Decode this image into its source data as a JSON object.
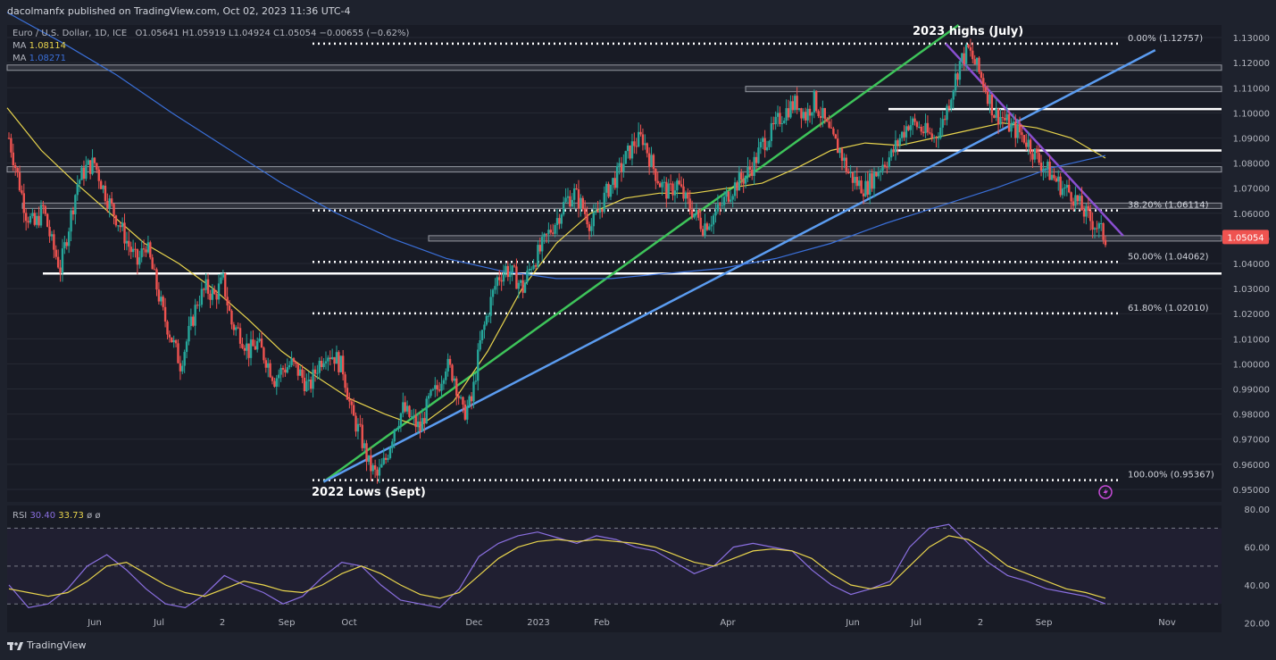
{
  "header": {
    "published": "dacolmanfx published on TradingView.com, Oct 02, 2023 11:36 UTC-4"
  },
  "legend": {
    "symbol": "Euro / U.S. Dollar, 1D, ICE",
    "ohlc": "O1.05641  H1.05919  L1.04924  C1.05054  −0.00655 (−0.62%)",
    "ma1_label": "MA",
    "ma1_value": "1.08114",
    "ma2_label": "MA",
    "ma2_value": "1.08271",
    "rsi_label": "RSI",
    "rsi_value": "30.40",
    "rsi_ma_value": "33.73",
    "rsi_extra": "ø   ø"
  },
  "footer": {
    "brand": "TradingView"
  },
  "chart_data": [
    {
      "type": "candlestick",
      "title": "Euro / U.S. Dollar, 1D, ICE",
      "x_axis_labels": [
        "Jun",
        "Jul",
        "2",
        "Sep",
        "Oct",
        "Dec",
        "2023",
        "Feb",
        "Apr",
        "Jun",
        "Jul",
        "2",
        "Sep",
        "Nov"
      ],
      "y_ticks": [
        "1.13000",
        "1.12000",
        "1.11000",
        "1.10000",
        "1.09000",
        "1.08000",
        "1.07000",
        "1.06000",
        "1.05000",
        "1.04000",
        "1.03000",
        "1.02000",
        "1.01000",
        "1.00000",
        "0.99000",
        "0.98000",
        "0.97000",
        "0.96000",
        "0.95000"
      ],
      "ylim": [
        0.945,
        1.135
      ],
      "last_price": "1.05054",
      "price_path": [
        1.09,
        1.075,
        1.06,
        1.055,
        1.062,
        1.048,
        1.038,
        1.055,
        1.072,
        1.078,
        1.08,
        1.07,
        1.062,
        1.055,
        1.047,
        1.04,
        1.048,
        1.034,
        1.02,
        1.01,
        1.0,
        1.012,
        1.025,
        1.03,
        1.027,
        1.033,
        1.016,
        1.012,
        1.005,
        1.008,
        1.002,
        0.994,
        0.998,
        1.0,
        0.996,
        0.99,
        0.999,
        1.005,
        1.003,
        0.998,
        0.98,
        0.972,
        0.96,
        0.955,
        0.962,
        0.975,
        0.982,
        0.978,
        0.974,
        0.985,
        0.99,
        1.0,
        0.995,
        0.98,
        0.985,
        1.008,
        1.022,
        1.034,
        1.038,
        1.035,
        1.03,
        1.04,
        1.045,
        1.052,
        1.058,
        1.065,
        1.068,
        1.062,
        1.055,
        1.062,
        1.07,
        1.075,
        1.082,
        1.088,
        1.09,
        1.08,
        1.072,
        1.068,
        1.072,
        1.065,
        1.06,
        1.055,
        1.058,
        1.062,
        1.068,
        1.072,
        1.075,
        1.08,
        1.088,
        1.092,
        1.098,
        1.102,
        1.104,
        1.099,
        1.105,
        1.098,
        1.09,
        1.085,
        1.076,
        1.072,
        1.07,
        1.075,
        1.08,
        1.083,
        1.09,
        1.096,
        1.095,
        1.092,
        1.09,
        1.096,
        1.108,
        1.12,
        1.125,
        1.118,
        1.11,
        1.1,
        1.098,
        1.094,
        1.092,
        1.088,
        1.082,
        1.078,
        1.074,
        1.07,
        1.068,
        1.063,
        1.058,
        1.055,
        1.05
      ],
      "moving_averages": [
        {
          "name": "MA",
          "value": "1.08114",
          "color": "#e8d44d",
          "path": [
            1.102,
            1.085,
            1.072,
            1.06,
            1.048,
            1.04,
            1.03,
            1.018,
            1.005,
            0.995,
            0.986,
            0.98,
            0.975,
            0.985,
            1.005,
            1.03,
            1.048,
            1.06,
            1.066,
            1.068,
            1.068,
            1.07,
            1.072,
            1.078,
            1.085,
            1.088,
            1.087,
            1.09,
            1.093,
            1.096,
            1.094,
            1.09,
            1.082
          ]
        },
        {
          "name": "MA",
          "value": "1.08271",
          "color": "#3a6fd8",
          "path": [
            1.14,
            1.128,
            1.115,
            1.1,
            1.086,
            1.072,
            1.06,
            1.05,
            1.042,
            1.037,
            1.034,
            1.034,
            1.036,
            1.038,
            1.042,
            1.048,
            1.056,
            1.063,
            1.07,
            1.078,
            1.083
          ]
        }
      ],
      "horizontal_levels": [
        1.118,
        1.1095,
        1.1015,
        1.085,
        1.0775,
        1.063,
        1.05,
        1.036
      ],
      "trendlines": [
        {
          "from": [
            "2022-09-26",
            0.953
          ],
          "to": [
            "2023-07-20",
            1.135
          ],
          "color": "#3ec45a"
        },
        {
          "from": [
            "2022-09-26",
            0.953
          ],
          "to": [
            "2023-10-20",
            1.125
          ],
          "color": "#5b9cf0"
        },
        {
          "from": [
            "2023-07-14",
            1.1276
          ],
          "to": [
            "2023-10-05",
            1.051
          ],
          "color": "#8a4fd1"
        }
      ],
      "fibonacci": [
        {
          "label": "0.00% (1.12757)",
          "value": 1.12757
        },
        {
          "label": "38.20% (1.06114)",
          "value": 1.06114
        },
        {
          "label": "50.00% (1.04062)",
          "value": 1.04062
        },
        {
          "label": "61.80% (1.02010)",
          "value": 1.0201
        },
        {
          "label": "100.00% (0.95367)",
          "value": 0.95367
        }
      ],
      "annotations": [
        {
          "text": "2023 highs (July)",
          "date": "2023-07-14",
          "price": 1.12757
        },
        {
          "text": "2022 Lows (Sept)",
          "date": "2022-09-26",
          "price": 0.95367
        }
      ]
    },
    {
      "type": "line",
      "title": "RSI",
      "y_ticks": [
        "80.00",
        "60.00",
        "40.00",
        "20.00"
      ],
      "ylim": [
        15,
        82
      ],
      "bands": [
        70,
        50,
        30
      ],
      "series": [
        {
          "name": "RSI",
          "color": "#8a6fe0",
          "values": [
            40,
            28,
            30,
            38,
            50,
            56,
            48,
            38,
            30,
            28,
            35,
            45,
            40,
            36,
            30,
            34,
            44,
            52,
            50,
            40,
            32,
            30,
            28,
            38,
            55,
            62,
            66,
            68,
            65,
            62,
            66,
            64,
            60,
            58,
            52,
            46,
            50,
            60,
            62,
            60,
            58,
            48,
            40,
            35,
            38,
            42,
            60,
            70,
            72,
            62,
            52,
            45,
            42,
            38,
            36,
            34,
            30
          ]
        },
        {
          "name": "MA",
          "color": "#e8d44d",
          "values": [
            38,
            36,
            34,
            36,
            42,
            50,
            52,
            46,
            40,
            36,
            34,
            38,
            42,
            40,
            37,
            36,
            40,
            46,
            50,
            46,
            40,
            35,
            33,
            36,
            45,
            54,
            60,
            63,
            64,
            63,
            64,
            63,
            62,
            60,
            56,
            52,
            50,
            54,
            58,
            59,
            58,
            54,
            46,
            40,
            38,
            40,
            50,
            60,
            66,
            64,
            58,
            50,
            46,
            42,
            38,
            36,
            33
          ]
        }
      ]
    }
  ]
}
